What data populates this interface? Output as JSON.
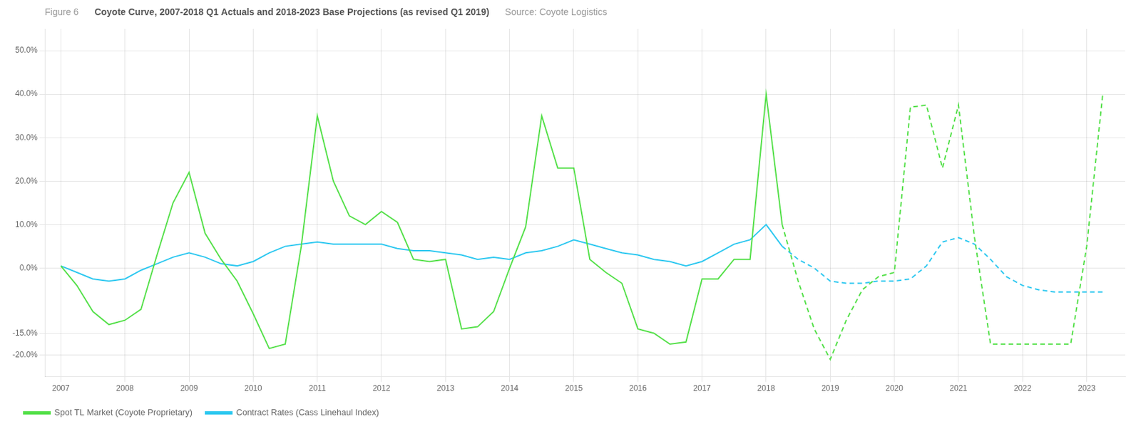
{
  "chart_data": {
    "type": "line",
    "title": "Coyote Curve, 2007-2018 Q1 Actuals and 2018-2023 Base Projections (as revised Q1 2019)",
    "subtitle": "Source: Coyote Logistics",
    "annotations": [
      "Figure 6"
    ],
    "series": [
      {
        "name": "Spot TL Market (Coyote Proprietary)",
        "color": "#55e04a",
        "line_style": "solid",
        "x": [
          2007.0,
          2007.25,
          2007.5,
          2007.75,
          2008.0,
          2008.25,
          2008.5,
          2008.75,
          2009.0,
          2009.25,
          2009.5,
          2009.75,
          2010.0,
          2010.25,
          2010.5,
          2010.75,
          2011.0,
          2011.25,
          2011.5,
          2011.75,
          2012.0,
          2012.25,
          2012.5,
          2012.75,
          2013.0,
          2013.25,
          2013.5,
          2013.75,
          2014.0,
          2014.25,
          2014.5,
          2014.75,
          2015.0,
          2015.25,
          2015.5,
          2015.75,
          2016.0,
          2016.25,
          2016.5,
          2016.75,
          2017.0,
          2017.25,
          2017.5,
          2017.75,
          2018.0,
          2018.25
        ],
        "values": [
          0.5,
          -4.0,
          -10.0,
          -13.0,
          -12.0,
          -9.5,
          3.0,
          15.0,
          22.0,
          8.0,
          2.0,
          -3.0,
          -10.5,
          -18.5,
          -17.5,
          5.0,
          35.0,
          20.0,
          12.0,
          10.0,
          13.0,
          10.5,
          2.0,
          1.5,
          2.0,
          -14.0,
          -13.5,
          -10.0,
          0.0,
          9.5,
          35.0,
          23.0,
          23.0,
          2.0,
          -1.0,
          -3.5,
          -14.0,
          -15.0,
          -17.5,
          -17.0,
          -2.5,
          -2.5,
          2.0,
          2.0,
          40.0,
          10.0
        ]
      },
      {
        "name": "Spot TL Market (Coyote Proprietary)",
        "color": "#55e04a",
        "line_style": "dashed",
        "x": [
          2018.25,
          2018.5,
          2018.75,
          2019.0,
          2019.25,
          2019.5,
          2019.75,
          2020.0,
          2020.25,
          2020.5,
          2020.75,
          2021.0,
          2021.25,
          2021.5,
          2021.75,
          2022.0,
          2022.25,
          2022.5,
          2022.75,
          2023.0,
          2023.25
        ],
        "values": [
          10.0,
          -3.0,
          -14.0,
          -21.0,
          -12.0,
          -5.0,
          -2.0,
          -1.0,
          37.0,
          37.5,
          23.0,
          37.5,
          7.0,
          -17.5,
          -17.5,
          -17.5,
          -17.5,
          -17.5,
          -17.5,
          5.0,
          40.0
        ]
      },
      {
        "name": "Contract Rates (Cass Linehaul Index)",
        "color": "#2ec8f0",
        "line_style": "solid",
        "x": [
          2007.0,
          2007.25,
          2007.5,
          2007.75,
          2008.0,
          2008.25,
          2008.5,
          2008.75,
          2009.0,
          2009.25,
          2009.5,
          2009.75,
          2010.0,
          2010.25,
          2010.5,
          2010.75,
          2011.0,
          2011.25,
          2011.5,
          2011.75,
          2012.0,
          2012.25,
          2012.5,
          2012.75,
          2013.0,
          2013.25,
          2013.5,
          2013.75,
          2014.0,
          2014.25,
          2014.5,
          2014.75,
          2015.0,
          2015.25,
          2015.5,
          2015.75,
          2016.0,
          2016.25,
          2016.5,
          2016.75,
          2017.0,
          2017.25,
          2017.5,
          2017.75,
          2018.0,
          2018.25
        ],
        "values": [
          0.5,
          -1.0,
          -2.5,
          -3.0,
          -2.5,
          -0.5,
          1.0,
          2.5,
          3.5,
          2.5,
          1.0,
          0.5,
          1.5,
          3.5,
          5.0,
          5.5,
          6.0,
          5.5,
          5.5,
          5.5,
          5.5,
          4.5,
          4.0,
          4.0,
          3.5,
          3.0,
          2.0,
          2.5,
          2.0,
          3.5,
          4.0,
          5.0,
          6.5,
          5.5,
          4.5,
          3.5,
          3.0,
          2.0,
          1.5,
          0.5,
          1.5,
          3.5,
          5.5,
          6.5,
          10.0,
          5.0
        ]
      },
      {
        "name": "Contract Rates (Cass Linehaul Index)",
        "color": "#2ec8f0",
        "line_style": "dashed",
        "x": [
          2018.25,
          2018.5,
          2018.75,
          2019.0,
          2019.25,
          2019.5,
          2019.75,
          2020.0,
          2020.25,
          2020.5,
          2020.75,
          2021.0,
          2021.25,
          2021.5,
          2021.75,
          2022.0,
          2022.25,
          2022.5,
          2022.75,
          2023.0,
          2023.25
        ],
        "values": [
          5.0,
          2.0,
          0.0,
          -3.0,
          -3.5,
          -3.5,
          -3.0,
          -3.0,
          -2.5,
          0.5,
          6.0,
          7.0,
          5.5,
          2.0,
          -2.0,
          -4.0,
          -5.0,
          -5.5,
          -5.5,
          -5.5,
          -5.5
        ]
      }
    ],
    "xlim": [
      2006.75,
      2023.6
    ],
    "xticks": [
      2007,
      2008,
      2009,
      2010,
      2011,
      2012,
      2013,
      2014,
      2015,
      2016,
      2017,
      2018,
      2019,
      2020,
      2021,
      2022,
      2023
    ],
    "ylim": [
      -25,
      55
    ],
    "yticks": [
      {
        "value": -20.0,
        "label": "-20.0%"
      },
      {
        "value": -15.0,
        "label": "-15.0%"
      },
      {
        "value": 0.0,
        "label": "0.0%"
      },
      {
        "value": 10.0,
        "label": "10.0%"
      },
      {
        "value": 20.0,
        "label": "20.0%"
      },
      {
        "value": 30.0,
        "label": "30.0%"
      },
      {
        "value": 40.0,
        "label": "40.0%"
      },
      {
        "value": 50.0,
        "label": "50.0%"
      }
    ],
    "grid": true,
    "legend": "bottom"
  }
}
